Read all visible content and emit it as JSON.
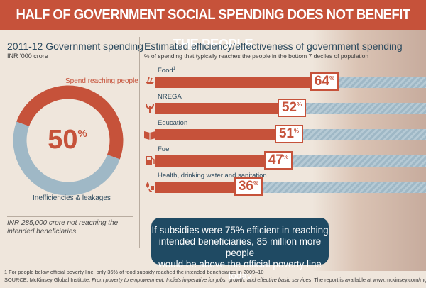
{
  "header": {
    "title": "HALF OF GOVERNMENT SOCIAL SPENDING DOES NOT BENEFIT THE PEOPLE"
  },
  "left_panel": {
    "title": "2011-12 Government spending",
    "unit": "INR '000 crore",
    "donut_center_value": "50",
    "donut_center_unit": "%",
    "reaching_label": "Spend reaching people",
    "inefficiency_label": "Inefficiencies & leakages",
    "note": "INR 285,000 crore not reaching the intended beneficiaries"
  },
  "right_panel": {
    "title": "Estimated efficiency/effectiveness of government spending",
    "subtitle": "% of spending that typically reaches the people in the bottom 7 deciles of population"
  },
  "callout": {
    "lines": [
      "If subsidies were 75% efficient in reaching",
      "intended beneficiaries, 85 million more people",
      "would be above the official poverty line today"
    ]
  },
  "footnotes": {
    "note_1": "1  For people below official poverty line, only 36% of food subsidy reached the intended beneficiaries in 2009–10",
    "source_prefix": "SOURCE: McKinsey Global Institute, ",
    "source_title": "From poverty to empowerment: India's imperative for jobs, growth, and effective basic services",
    "source_suffix": ". The report is available at www.mckinsey.com/mgi"
  },
  "colors": {
    "accent": "#c6523a",
    "navy": "#2c4a5e",
    "callout_bg": "#1f4a63",
    "donut_blue": "#9fb8c6",
    "background": "#efe6dc"
  },
  "chart_data": [
    {
      "type": "pie",
      "title": "2011-12 Government spending",
      "unit": "INR '000 crore",
      "slices": [
        {
          "label": "Spend reaching people",
          "value": 50
        },
        {
          "label": "Inefficiencies & leakages",
          "value": 50
        }
      ]
    },
    {
      "type": "bar",
      "title": "Estimated efficiency/effectiveness of government spending",
      "subtitle": "% of spending that typically reaches the people in the bottom 7 deciles of population",
      "categories": [
        "Food",
        "NREGA",
        "Education",
        "Fuel",
        "Health, drinking water and sanitation"
      ],
      "category_notes": [
        "1",
        "",
        "",
        "",
        ""
      ],
      "icons": [
        "food-icon",
        "nrega-icon",
        "education-icon",
        "fuel-icon",
        "health-icon"
      ],
      "values": [
        64,
        52,
        51,
        47,
        36
      ],
      "unit": "%",
      "ylim": [
        0,
        100
      ]
    }
  ]
}
